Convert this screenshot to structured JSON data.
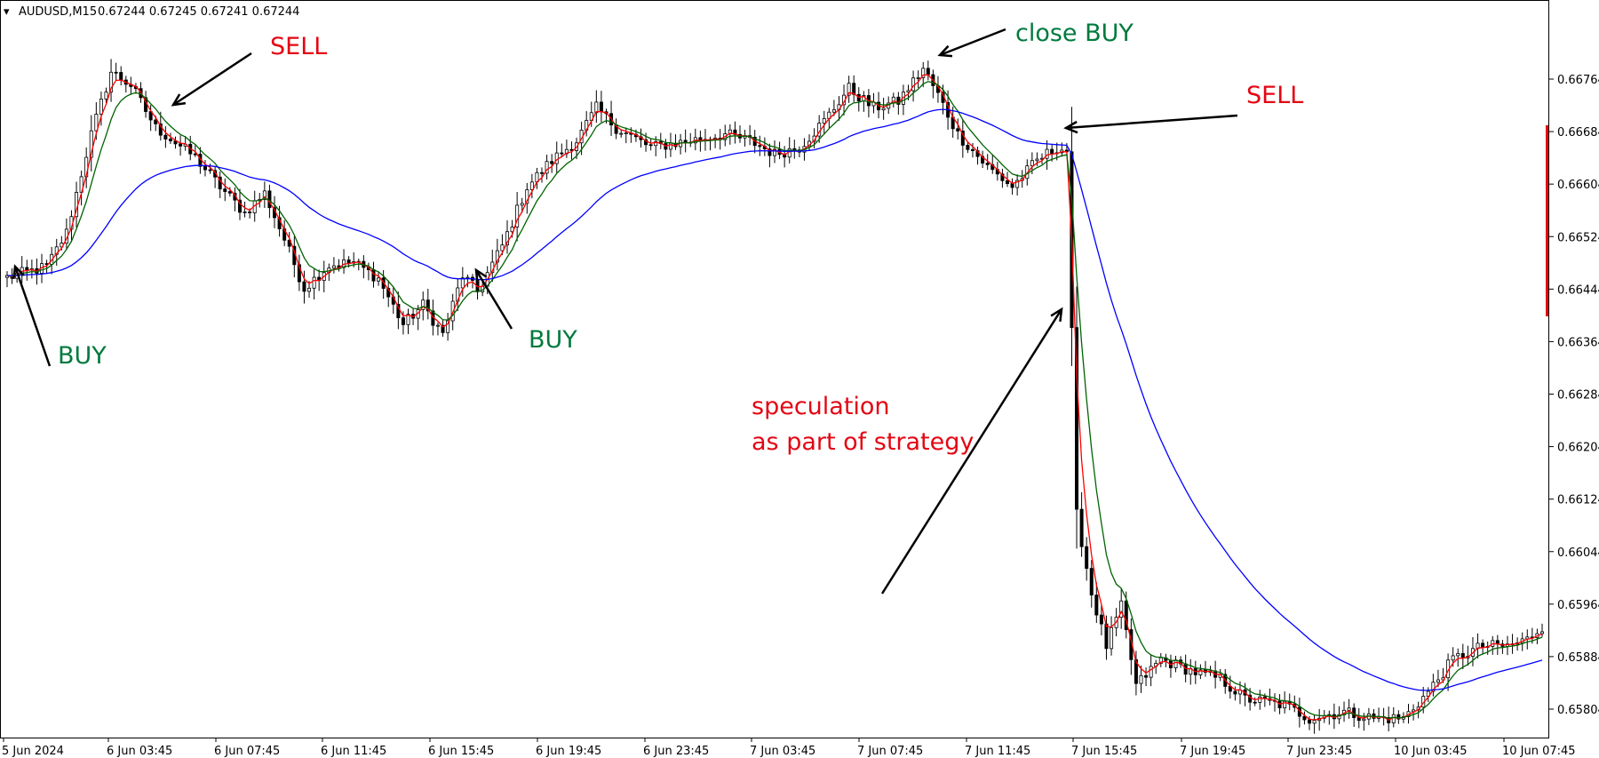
{
  "header": {
    "symbol": "AUDUSD,M15",
    "ohlc": "0.67244 0.67245 0.67241 0.67244"
  },
  "colors": {
    "candle": "#000000",
    "ema_fast": "#ff0000",
    "ema_mid": "#006400",
    "ema_slow": "#0000ff",
    "buy_text": "#007a3d",
    "sell_text": "#e30613",
    "price_marker": "#e30613"
  },
  "annotations": [
    {
      "id": "buy-1",
      "text": "BUY",
      "color": "buy"
    },
    {
      "id": "sell-1",
      "text": "SELL",
      "color": "sell"
    },
    {
      "id": "buy-2",
      "text": "BUY",
      "color": "buy"
    },
    {
      "id": "close-buy",
      "text": "close BUY",
      "color": "buy"
    },
    {
      "id": "sell-2",
      "text": "SELL",
      "color": "sell"
    },
    {
      "id": "speculation-1",
      "text": "speculation",
      "color": "sell"
    },
    {
      "id": "speculation-2",
      "text": "as part of strategy",
      "color": "sell"
    }
  ],
  "chart_data": {
    "type": "candlestick",
    "timeframe": "M15",
    "ylim": [
      0.6578,
      0.6685
    ],
    "y_ticks": [
      "0.66764",
      "0.66684",
      "0.66604",
      "0.66524",
      "0.66444",
      "0.66364",
      "0.66284",
      "0.66204",
      "0.66124",
      "0.66044",
      "0.65964",
      "0.65884",
      "0.65804"
    ],
    "x_ticks": [
      "5 Jun 2024",
      "6 Jun 03:45",
      "6 Jun 07:45",
      "6 Jun 11:45",
      "6 Jun 15:45",
      "6 Jun 19:45",
      "6 Jun 23:45",
      "7 Jun 03:45",
      "7 Jun 07:45",
      "7 Jun 11:45",
      "7 Jun 15:45",
      "7 Jun 19:45",
      "7 Jun 23:45",
      "10 Jun 03:45",
      "10 Jun 07:45"
    ],
    "price_path": [
      [
        0,
        0.66462
      ],
      [
        3,
        0.66468
      ],
      [
        8,
        0.66478
      ],
      [
        12,
        0.6653
      ],
      [
        17,
        0.6668
      ],
      [
        21,
        0.66775
      ],
      [
        25,
        0.66755
      ],
      [
        30,
        0.6669
      ],
      [
        38,
        0.66645
      ],
      [
        43,
        0.666
      ],
      [
        48,
        0.6656
      ],
      [
        52,
        0.6659
      ],
      [
        56,
        0.6652
      ],
      [
        60,
        0.66445
      ],
      [
        65,
        0.6648
      ],
      [
        70,
        0.66485
      ],
      [
        75,
        0.6646
      ],
      [
        80,
        0.6639
      ],
      [
        84,
        0.6642
      ],
      [
        88,
        0.66375
      ],
      [
        92,
        0.66465
      ],
      [
        95,
        0.6644
      ],
      [
        100,
        0.6651
      ],
      [
        105,
        0.666
      ],
      [
        110,
        0.6664
      ],
      [
        115,
        0.6667
      ],
      [
        119,
        0.6672
      ],
      [
        123,
        0.6669
      ],
      [
        130,
        0.6666
      ],
      [
        138,
        0.6667
      ],
      [
        145,
        0.6668
      ],
      [
        150,
        0.6667
      ],
      [
        155,
        0.6665
      ],
      [
        160,
        0.6666
      ],
      [
        165,
        0.667
      ],
      [
        170,
        0.6675
      ],
      [
        175,
        0.6672
      ],
      [
        180,
        0.6673
      ],
      [
        185,
        0.6678
      ],
      [
        188,
        0.6674
      ],
      [
        192,
        0.6668
      ],
      [
        198,
        0.6663
      ],
      [
        203,
        0.666
      ],
      [
        208,
        0.6664
      ],
      [
        212,
        0.6666
      ],
      [
        214,
        0.66655
      ],
      [
        216,
        0.661
      ],
      [
        219,
        0.6598
      ],
      [
        222,
        0.659
      ],
      [
        225,
        0.6596
      ],
      [
        228,
        0.6584
      ],
      [
        233,
        0.6588
      ],
      [
        240,
        0.6586
      ],
      [
        245,
        0.6585
      ],
      [
        250,
        0.6582
      ],
      [
        258,
        0.6581
      ],
      [
        263,
        0.6579
      ],
      [
        270,
        0.658
      ],
      [
        276,
        0.6579
      ],
      [
        282,
        0.6579
      ],
      [
        287,
        0.6583
      ],
      [
        292,
        0.6588
      ],
      [
        298,
        0.659
      ],
      [
        303,
        0.659
      ],
      [
        307,
        0.6591
      ],
      [
        310,
        0.6593
      ]
    ],
    "series": [
      {
        "type": "candles",
        "count": 311
      },
      {
        "type": "line",
        "ema_period": 3,
        "color": "ema_fast"
      },
      {
        "type": "line",
        "ema_period": 7,
        "color": "ema_mid"
      },
      {
        "type": "line",
        "ema_period": 40,
        "color": "ema_slow"
      }
    ]
  }
}
